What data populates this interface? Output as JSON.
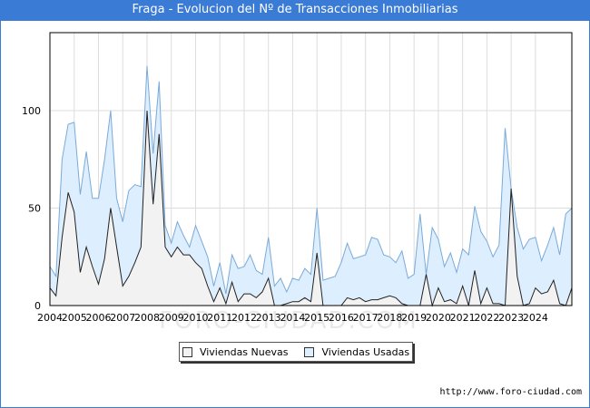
{
  "header": {
    "title": "Fraga - Evolucion del Nº de Transacciones Inmobiliarias"
  },
  "source": "http://www.foro-ciudad.com",
  "watermark": "FORO-CIUDAD.COM",
  "colors": {
    "title_bg": "#3a7bd5",
    "nuevas_fill": "#f2f2f2",
    "nuevas_line": "#222222",
    "usadas_fill": "#ddeeff",
    "usadas_line": "#7aaad8"
  },
  "chart_data": {
    "type": "area",
    "title": "Fraga - Evolucion del Nº de Transacciones Inmobiliarias",
    "xlabel": "",
    "ylabel": "",
    "ylim": [
      0,
      140
    ],
    "yticks": [
      0,
      50,
      100
    ],
    "xticks": [
      "2004",
      "2005",
      "2006",
      "2007",
      "2008",
      "2009",
      "2010",
      "2011",
      "2012",
      "2013",
      "2014",
      "2015",
      "2016",
      "2017",
      "2018",
      "2019",
      "2020",
      "2021",
      "2022",
      "2023",
      "2024"
    ],
    "x_start": 2004,
    "points_per_year": 4,
    "grid": true,
    "legend_position": "bottom",
    "series": [
      {
        "name": "Viviendas Nuevas",
        "values": [
          9,
          5,
          35,
          58,
          48,
          17,
          30,
          20,
          11,
          24,
          50,
          30,
          10,
          15,
          22,
          30,
          100,
          52,
          88,
          30,
          25,
          30,
          26,
          26,
          22,
          19,
          10,
          2,
          9,
          1,
          12,
          2,
          6,
          6,
          4,
          7,
          14,
          0,
          0,
          1,
          2,
          2,
          4,
          2,
          27,
          0,
          0,
          0,
          0,
          4,
          3,
          4,
          2,
          3,
          3,
          4,
          5,
          4,
          1,
          0,
          0,
          0,
          16,
          0,
          9,
          2,
          3,
          1,
          10,
          0,
          18,
          1,
          9,
          1,
          1,
          0,
          60,
          15,
          0,
          1,
          9,
          6,
          7,
          13,
          1,
          0,
          9
        ]
      },
      {
        "name": "Viviendas Usadas",
        "values": [
          20,
          15,
          75,
          93,
          94,
          57,
          79,
          55,
          55,
          75,
          100,
          55,
          43,
          59,
          62,
          61,
          123,
          78,
          115,
          41,
          32,
          43,
          36,
          30,
          41,
          33,
          25,
          10,
          22,
          6,
          26,
          19,
          20,
          26,
          18,
          16,
          35,
          10,
          14,
          7,
          14,
          13,
          19,
          16,
          50,
          13,
          14,
          15,
          22,
          32,
          24,
          25,
          26,
          35,
          34,
          26,
          25,
          22,
          28,
          14,
          16,
          47,
          16,
          40,
          34,
          20,
          27,
          17,
          29,
          26,
          51,
          38,
          33,
          25,
          31,
          91,
          60,
          40,
          29,
          34,
          35,
          23,
          31,
          40,
          26,
          47,
          50
        ]
      }
    ]
  }
}
